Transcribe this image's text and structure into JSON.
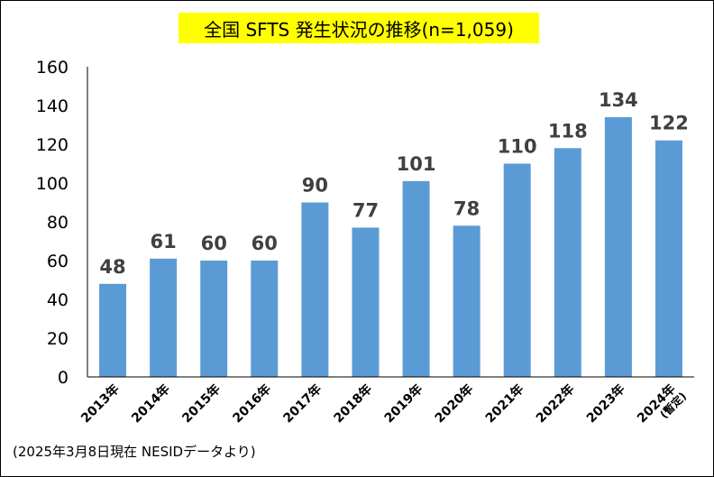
{
  "chart_data": {
    "type": "bar",
    "title": "全国 SFTS 発生状況の推移(n=1,059)",
    "categories": [
      "2013年",
      "2014年",
      "2015年",
      "2016年",
      "2017年",
      "2018年",
      "2019年",
      "2020年",
      "2021年",
      "2022年",
      "2023年",
      "2024年"
    ],
    "category_notes": [
      "",
      "",
      "",
      "",
      "",
      "",
      "",
      "",
      "",
      "",
      "",
      "(暫定)"
    ],
    "values": [
      48,
      61,
      60,
      60,
      90,
      77,
      101,
      78,
      110,
      118,
      134,
      122
    ],
    "data_labels": [
      "48",
      "61",
      "60",
      "60",
      "90",
      "77",
      "101",
      "78",
      "110",
      "118",
      "134",
      "122"
    ],
    "yticks": [
      "0",
      "20",
      "40",
      "60",
      "80",
      "100",
      "120",
      "140",
      "160"
    ],
    "ylim": [
      0,
      160
    ],
    "xlabel": "",
    "ylabel": "",
    "grid": false,
    "bar_color": "#5b9bd5",
    "title_background": "#ffff00"
  },
  "footnote": "(2025年3月8日現在 NESIDデータより)"
}
